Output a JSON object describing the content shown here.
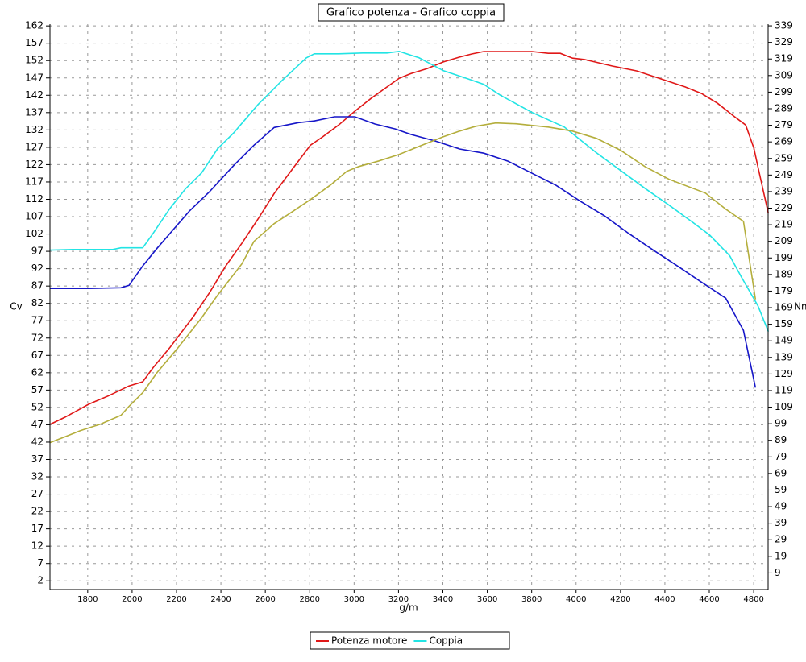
{
  "chart_data": {
    "type": "line",
    "title": "Grafico potenza - Grafico coppia",
    "y_label": "Cv",
    "y2_label": "Nm",
    "x_label": "g/m",
    "grid": true,
    "legend": "bottom",
    "xlim": [
      1630,
      4865
    ],
    "ylim": [
      -0.5,
      162.5
    ],
    "y2lim": [
      -1,
      340
    ],
    "xticks": [
      1800,
      2000,
      2200,
      2400,
      2600,
      2800,
      3000,
      3200,
      3400,
      3600,
      3800,
      4000,
      4200,
      4400,
      4600,
      4800
    ],
    "yticks": [
      2,
      7,
      12,
      17,
      22,
      27,
      32,
      37,
      42,
      47,
      52,
      57,
      62,
      67,
      72,
      77,
      82,
      87,
      92,
      97,
      102,
      107,
      112,
      117,
      122,
      127,
      132,
      137,
      142,
      147,
      152,
      157,
      162
    ],
    "y2ticks": [
      9,
      19,
      29,
      39,
      49,
      59,
      69,
      79,
      89,
      99,
      109,
      119,
      129,
      139,
      149,
      159,
      169,
      179,
      189,
      199,
      209,
      219,
      229,
      239,
      249,
      259,
      269,
      279,
      289,
      299,
      309,
      319,
      329,
      339
    ],
    "series": [
      {
        "name": "Potenza motore",
        "color": "#e01818",
        "x": [
          1630,
          1695,
          1750,
          1804,
          1895,
          1986,
          2048,
          2095,
          2168,
          2276,
          2349,
          2422,
          2494,
          2567,
          2640,
          2730,
          2803,
          2858,
          2930,
          3003,
          3076,
          3148,
          3203,
          3257,
          3330,
          3402,
          3475,
          3530,
          3584,
          3657,
          3802,
          3875,
          3929,
          3984,
          4038,
          4165,
          4274,
          4383,
          4492,
          4565,
          4637,
          4710,
          4764,
          4801,
          4819,
          4866
        ],
        "values": [
          47.1,
          49.1,
          51.0,
          52.9,
          55.4,
          58.2,
          59.4,
          63.5,
          69.1,
          78.2,
          85.1,
          92.8,
          99.3,
          106.3,
          113.7,
          121.4,
          127.6,
          130.0,
          133.4,
          137.4,
          141.1,
          144.4,
          146.9,
          148.3,
          149.7,
          151.6,
          153.0,
          153.9,
          154.6,
          154.6,
          154.6,
          154.1,
          154.1,
          152.7,
          152.3,
          150.4,
          149.0,
          146.7,
          144.4,
          142.5,
          139.7,
          136.0,
          133.4,
          126.7,
          121.4,
          107.9
        ]
      },
      {
        "name": "Coppia",
        "color": "#22e4e4",
        "axis": "y2",
        "x": [
          1630,
          1732,
          1913,
          1950,
          2048,
          2095,
          2168,
          2240,
          2313,
          2385,
          2458,
          2567,
          2676,
          2785,
          2821,
          2930,
          3039,
          3148,
          3203,
          3293,
          3402,
          3511,
          3584,
          3657,
          3802,
          3947,
          4092,
          4201,
          4310,
          4419,
          4528,
          4601,
          4692,
          4746,
          4819,
          4866
        ],
        "values": [
          203.7,
          204.1,
          204.1,
          205.1,
          205.1,
          213.9,
          228.4,
          240.6,
          250.3,
          264.8,
          274.5,
          291.5,
          306.1,
          319.7,
          322.1,
          322.1,
          322.6,
          322.6,
          323.6,
          319.7,
          311.9,
          307.1,
          303.7,
          297.3,
          286.7,
          277.9,
          262.4,
          251.7,
          241.0,
          230.8,
          220.2,
          212.9,
          200.3,
          187.2,
          170.2,
          154.6
        ]
      },
      {
        "color": "#1616c8",
        "x": [
          1630,
          1804,
          1950,
          1986,
          2048,
          2113,
          2186,
          2258,
          2349,
          2458,
          2549,
          2640,
          2749,
          2821,
          2912,
          3003,
          3094,
          3185,
          3257,
          3366,
          3475,
          3584,
          3693,
          3802,
          3911,
          4020,
          4129,
          4238,
          4347,
          4456,
          4565,
          4674,
          4754,
          4808
        ],
        "values": [
          86.3,
          86.3,
          86.5,
          87.2,
          92.8,
          97.9,
          103.3,
          108.6,
          114.2,
          121.8,
          127.6,
          132.7,
          134.1,
          134.6,
          135.8,
          135.8,
          133.7,
          132.3,
          130.7,
          128.8,
          126.5,
          125.3,
          123.0,
          119.5,
          116.0,
          111.4,
          107.2,
          102.1,
          97.4,
          92.8,
          88.1,
          83.5,
          74.2,
          57.7
        ]
      },
      {
        "color": "#b4ae3c",
        "axis": "y2",
        "x": [
          1630,
          1695,
          1768,
          1859,
          1950,
          1986,
          2048,
          2113,
          2204,
          2313,
          2385,
          2494,
          2549,
          2640,
          2712,
          2803,
          2894,
          2967,
          3021,
          3112,
          3203,
          3293,
          3402,
          3475,
          3548,
          3638,
          3729,
          3875,
          3984,
          4092,
          4201,
          4310,
          4419,
          4583,
          4674,
          4754,
          4808
        ],
        "values": [
          87.6,
          91.0,
          94.9,
          98.8,
          104.1,
          109.5,
          117.7,
          129.9,
          144.4,
          162.9,
          176.5,
          195.4,
          209.0,
          219.7,
          226.0,
          234.2,
          243.0,
          251.2,
          254.1,
          257.5,
          261.4,
          266.3,
          272.1,
          275.5,
          278.4,
          280.4,
          279.9,
          277.9,
          275.5,
          271.1,
          263.9,
          254.1,
          246.4,
          238.1,
          228.4,
          221.1,
          174.0
        ]
      }
    ]
  }
}
